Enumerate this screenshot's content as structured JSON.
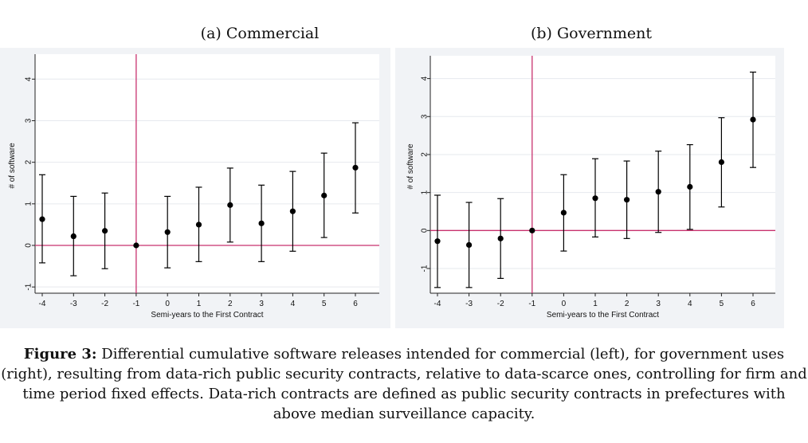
{
  "figure": {
    "caption_label": "Figure 3:",
    "caption_text": "Differential cumulative software releases intended for commercial (left), for government uses (right), resulting from data-rich public security contracts, relative to data-scarce ones, controlling for firm and time period fixed effects. Data-rich contracts are defined as public security contracts in prefectures with above median surveillance capacity."
  },
  "colors": {
    "estimate": "#000000",
    "reference_line": "#c8326e",
    "plot_bg": "#ffffff"
  },
  "chart_data": [
    {
      "type": "scatter",
      "title": "(a) Commercial",
      "xlabel": "Semi-years to the First Contract",
      "ylabel": "# of software",
      "x": [
        -4,
        -3,
        -2,
        -1,
        0,
        1,
        2,
        3,
        4,
        5,
        6
      ],
      "y": [
        0.63,
        0.22,
        0.35,
        0.0,
        0.32,
        0.5,
        0.97,
        0.53,
        0.82,
        1.2,
        1.87
      ],
      "ci_low": [
        -0.42,
        -0.73,
        -0.56,
        0.0,
        -0.54,
        -0.39,
        0.08,
        -0.39,
        -0.14,
        0.19,
        0.78
      ],
      "ci_high": [
        1.7,
        1.18,
        1.26,
        0.0,
        1.18,
        1.4,
        1.86,
        1.45,
        1.78,
        2.22,
        2.95
      ],
      "xticks": [
        "-4",
        "-3",
        "-2",
        "-1",
        "0",
        "1",
        "2",
        "3",
        "4",
        "5",
        "6"
      ],
      "yticks": [
        -1,
        0,
        1,
        2,
        3,
        4
      ],
      "xlim": [
        -4.1,
        6.7
      ],
      "ylim": [
        -1.15,
        4.6
      ],
      "vline": -1,
      "hline": 0
    },
    {
      "type": "scatter",
      "title": "(b) Government",
      "xlabel": "Semi-years to the First Contract",
      "ylabel": "# of software",
      "x": [
        -4,
        -3,
        -2,
        -1,
        0,
        1,
        2,
        3,
        4,
        5,
        6
      ],
      "y": [
        -0.28,
        -0.38,
        -0.21,
        0.0,
        0.47,
        0.85,
        0.81,
        1.02,
        1.15,
        1.8,
        2.92
      ],
      "ci_low": [
        -1.5,
        -1.5,
        -1.26,
        0.0,
        -0.54,
        -0.17,
        -0.21,
        -0.05,
        0.03,
        0.62,
        1.66
      ],
      "ci_high": [
        0.93,
        0.74,
        0.84,
        0.0,
        1.47,
        1.89,
        1.83,
        2.09,
        2.26,
        2.97,
        4.17
      ],
      "xticks": [
        "-4",
        "-3",
        "-2",
        "-1",
        "0",
        "1",
        "2",
        "3",
        "4",
        "5",
        "6"
      ],
      "yticks": [
        -1,
        0,
        1,
        2,
        3,
        4
      ],
      "xlim": [
        -4.1,
        6.7
      ],
      "ylim": [
        -1.65,
        4.6
      ],
      "vline": -1,
      "hline": 0
    }
  ]
}
